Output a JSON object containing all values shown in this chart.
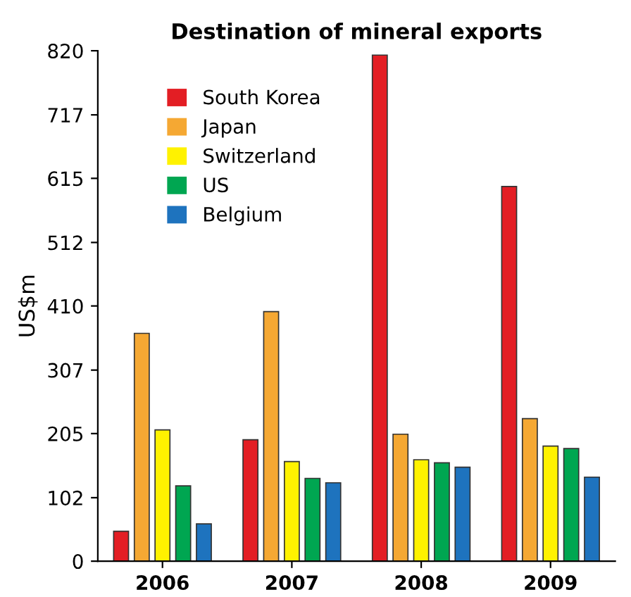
{
  "chart_data": {
    "type": "bar",
    "title": "Destination of mineral exports",
    "ylabel": "US$m",
    "categories": [
      "2006",
      "2007",
      "2008",
      "2009"
    ],
    "series": [
      {
        "name": "South Korea",
        "color": "#e31e24",
        "values": [
          48,
          195,
          813,
          602
        ]
      },
      {
        "name": "Japan",
        "color": "#f5a833",
        "values": [
          366,
          401,
          204,
          229
        ]
      },
      {
        "name": "Switzerland",
        "color": "#fff200",
        "values": [
          211,
          160,
          163,
          185
        ]
      },
      {
        "name": "US",
        "color": "#00a651",
        "values": [
          121,
          133,
          158,
          181
        ]
      },
      {
        "name": "Belgium",
        "color": "#1e73be",
        "values": [
          60,
          126,
          151,
          135
        ]
      }
    ],
    "ylim": [
      0,
      820
    ],
    "yticks": [
      0,
      102,
      205,
      307,
      410,
      512,
      615,
      717,
      820
    ],
    "grid": false,
    "legend": "top left"
  }
}
